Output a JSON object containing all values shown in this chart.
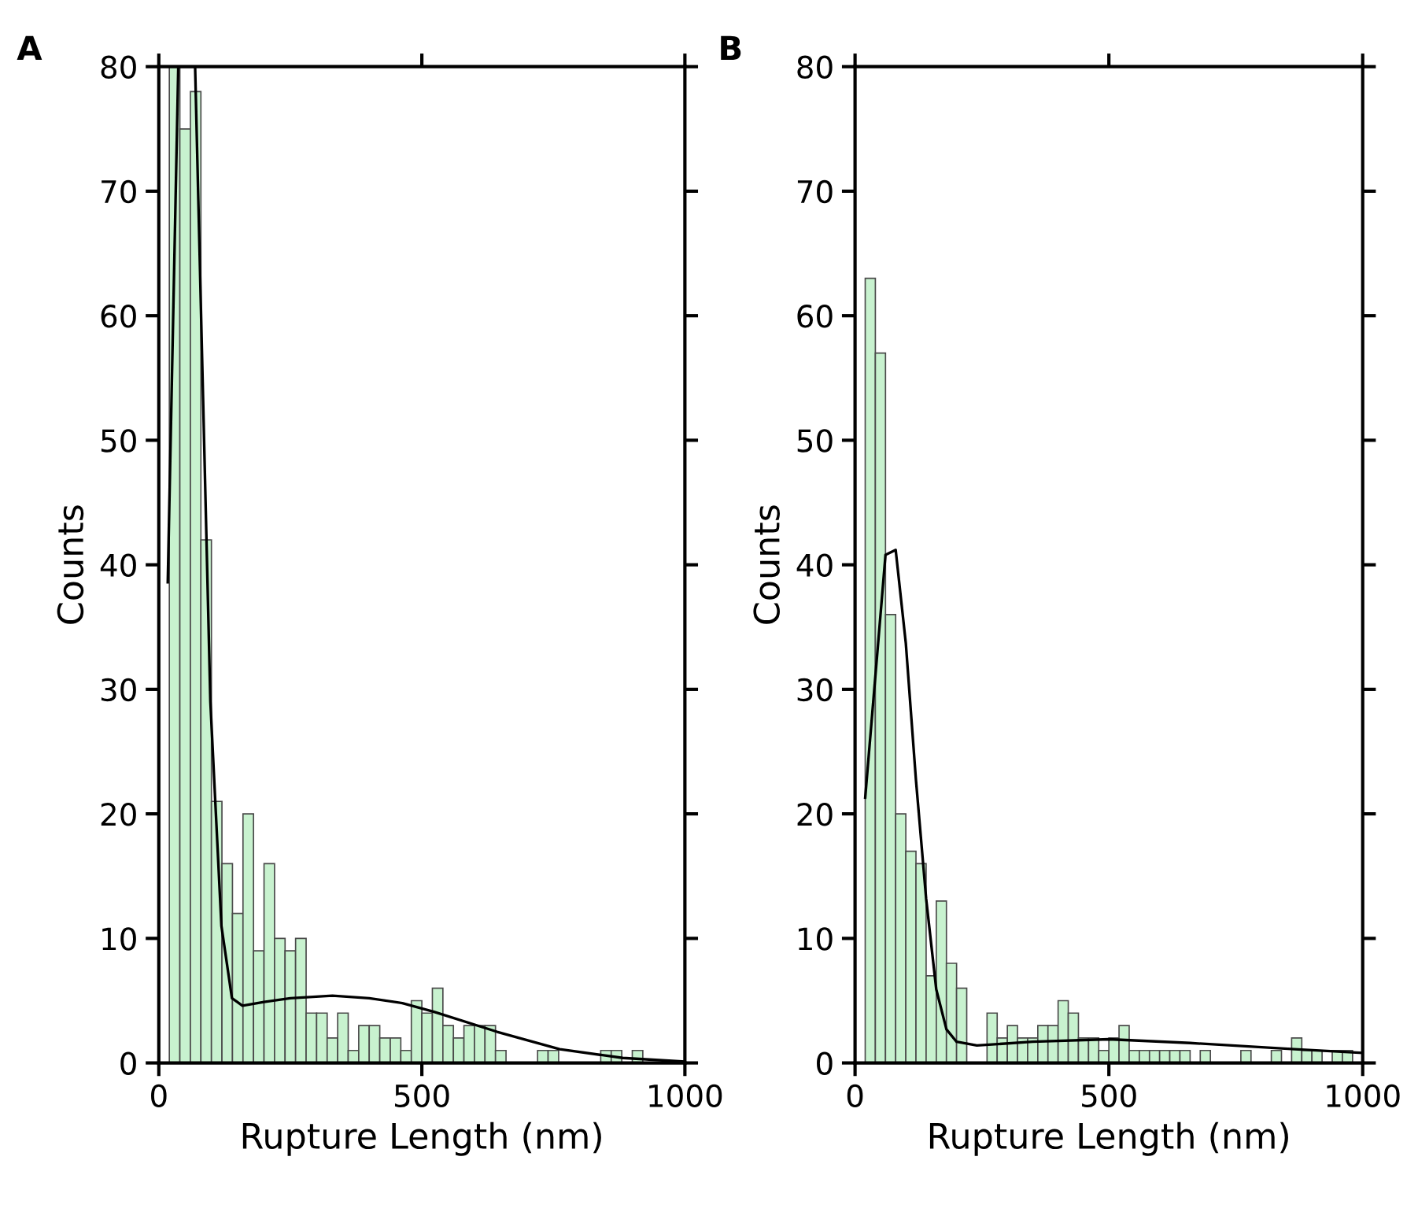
{
  "chart_data": [
    {
      "type": "histogram",
      "title": "A",
      "xlabel": "Rupture Length (nm)",
      "ylabel": "Counts",
      "xlim": [
        0,
        1000
      ],
      "xticks": [
        0,
        500,
        1000
      ],
      "ylim": [
        0,
        80
      ],
      "yticks": [
        0,
        10,
        20,
        30,
        40,
        50,
        60,
        70,
        80
      ],
      "grid": false,
      "legend": false,
      "series": [
        {
          "color": "#c8f2cf",
          "bins": [
            20,
            40,
            60,
            80,
            100,
            120,
            140,
            160,
            180,
            200,
            220,
            240,
            260,
            280,
            300,
            320,
            340,
            360,
            380,
            400,
            420,
            440,
            460,
            480,
            500,
            520,
            540,
            560,
            580,
            600,
            620,
            640,
            660,
            680,
            700,
            720,
            740,
            760,
            780,
            800,
            820,
            840,
            860,
            880,
            900,
            920,
            940,
            960,
            980,
            1000
          ],
          "values": [
            80,
            75,
            78,
            42,
            21,
            16,
            12,
            20,
            9,
            16,
            10,
            9,
            10,
            4,
            4,
            2,
            4,
            1,
            3,
            3,
            2,
            2,
            1,
            5,
            4,
            6,
            3,
            2,
            3,
            3,
            3,
            1,
            0,
            0,
            0,
            1,
            1,
            0,
            0,
            0,
            0,
            1,
            1,
            0,
            1,
            0,
            0,
            0,
            0
          ]
        },
        {
          "type": "line",
          "color": "#000000",
          "x": [
            17,
            37,
            69,
            98,
            119,
            139,
            159,
            200,
            250,
            330,
            400,
            463,
            523,
            643,
            762,
            882,
            1000
          ],
          "values": [
            38.6,
            80,
            80,
            29,
            11,
            5.2,
            4.6,
            4.9,
            5.2,
            5.4,
            5.2,
            4.8,
            4.1,
            2.5,
            1.1,
            0.4,
            0.1
          ]
        }
      ]
    },
    {
      "type": "histogram",
      "title": "B",
      "xlabel": "Rupture Length (nm)",
      "ylabel": "Counts",
      "xlim": [
        0,
        1000
      ],
      "xticks": [
        0,
        500,
        1000
      ],
      "ylim": [
        0,
        80
      ],
      "yticks": [
        0,
        10,
        20,
        30,
        40,
        50,
        60,
        70,
        80
      ],
      "grid": false,
      "legend": false,
      "series": [
        {
          "color": "#c8f2cf",
          "bins": [
            20,
            40,
            60,
            80,
            100,
            120,
            140,
            160,
            180,
            200,
            220,
            240,
            260,
            280,
            300,
            320,
            340,
            360,
            380,
            400,
            420,
            440,
            460,
            480,
            500,
            520,
            540,
            560,
            580,
            600,
            620,
            640,
            660,
            680,
            700,
            720,
            740,
            760,
            780,
            800,
            820,
            840,
            860,
            880,
            900,
            920,
            940,
            960,
            980,
            1000
          ],
          "values": [
            63,
            57,
            36,
            20,
            17,
            16,
            7,
            13,
            8,
            6,
            0,
            0,
            4,
            2,
            3,
            2,
            2,
            3,
            3,
            5,
            4,
            2,
            2,
            1,
            2,
            3,
            1,
            1,
            1,
            1,
            1,
            1,
            0,
            1,
            0,
            0,
            0,
            1,
            0,
            0,
            1,
            0,
            2,
            1,
            1,
            0,
            1,
            1,
            0
          ]
        },
        {
          "type": "line",
          "color": "#000000",
          "x": [
            20,
            60,
            80,
            100,
            120,
            140,
            160,
            180,
            200,
            240,
            350,
            500,
            660,
            866,
            1000
          ],
          "values": [
            21.3,
            40.8,
            41.2,
            33.7,
            22.7,
            13.2,
            5.9,
            2.7,
            1.7,
            1.4,
            1.7,
            1.9,
            1.6,
            1.1,
            0.8
          ]
        }
      ]
    }
  ]
}
